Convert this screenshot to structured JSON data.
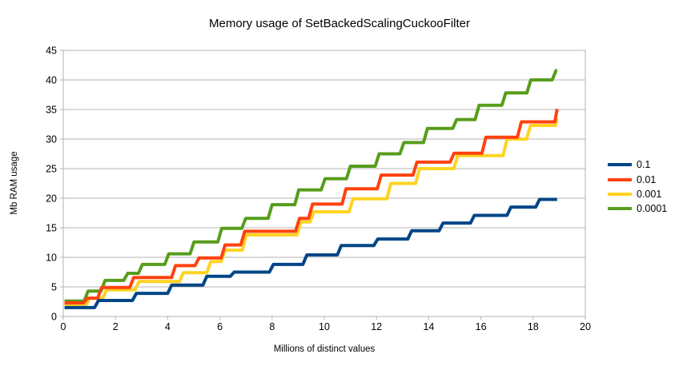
{
  "chart": {
    "title": "Memory usage of SetBackedScalingCuckooFilter",
    "xlabel": "Millions of distinct values",
    "ylabel": "Mb RAM usage"
  },
  "chart_data": {
    "type": "line",
    "step_style": true,
    "title": "Memory usage of SetBackedScalingCuckooFilter",
    "xlabel": "Millions of distinct values",
    "ylabel": "Mb RAM usage",
    "xlim": [
      0,
      20
    ],
    "ylim": [
      0,
      45
    ],
    "xticks": [
      0,
      2,
      4,
      6,
      8,
      10,
      12,
      14,
      16,
      18,
      20
    ],
    "yticks": [
      0,
      5,
      10,
      15,
      20,
      25,
      30,
      35,
      40,
      45
    ],
    "grid": "horizontal",
    "legend_position": "right",
    "colors": {
      "background": "#ffffff",
      "grid": "#b3b3b3",
      "axis": "#b3b3b3",
      "text": "#000000"
    },
    "series": [
      {
        "name": "0.1",
        "color": "#004586",
        "x_start": 0.05,
        "x_end": 18.92,
        "start": 1.5,
        "steps": [
          [
            1.2,
            2.7
          ],
          [
            2.65,
            3.9
          ],
          [
            4.0,
            5.3
          ],
          [
            5.35,
            6.8
          ],
          [
            6.4,
            7.5
          ],
          [
            7.9,
            8.8
          ],
          [
            9.18,
            10.4
          ],
          [
            10.5,
            12.0
          ],
          [
            11.9,
            13.1
          ],
          [
            13.2,
            14.5
          ],
          [
            14.4,
            15.8
          ],
          [
            15.6,
            17.1
          ],
          [
            17.0,
            18.5
          ],
          [
            18.1,
            19.8
          ]
        ]
      },
      {
        "name": "0.01",
        "color": "#FF420E",
        "x_start": 0.05,
        "x_end": 18.92,
        "start": 2.3,
        "steps": [
          [
            0.78,
            3.1
          ],
          [
            1.32,
            4.9
          ],
          [
            2.55,
            6.6
          ],
          [
            4.15,
            8.6
          ],
          [
            5.05,
            9.9
          ],
          [
            6.05,
            12.1
          ],
          [
            6.8,
            14.4
          ],
          [
            8.9,
            16.6
          ],
          [
            9.4,
            19.0
          ],
          [
            10.68,
            21.6
          ],
          [
            12.03,
            23.9
          ],
          [
            13.4,
            26.1
          ],
          [
            14.82,
            27.6
          ],
          [
            16.04,
            30.3
          ],
          [
            17.4,
            32.9
          ],
          [
            18.83,
            35.1
          ]
        ]
      },
      {
        "name": "0.001",
        "color": "#FFD320",
        "x_start": 0.05,
        "x_end": 18.92,
        "start": 2.0,
        "steps": [
          [
            0.87,
            3.1
          ],
          [
            1.51,
            4.5
          ],
          [
            2.75,
            5.9
          ],
          [
            4.45,
            7.4
          ],
          [
            5.5,
            9.3
          ],
          [
            6.05,
            11.2
          ],
          [
            6.86,
            13.8
          ],
          [
            8.95,
            16.0
          ],
          [
            9.45,
            17.7
          ],
          [
            10.95,
            19.9
          ],
          [
            12.4,
            22.5
          ],
          [
            13.5,
            25.0
          ],
          [
            14.96,
            27.2
          ],
          [
            16.85,
            30.0
          ],
          [
            17.75,
            32.3
          ],
          [
            18.85,
            33.4
          ]
        ]
      },
      {
        "name": "0.0001",
        "color": "#579D1C",
        "x_start": 0.05,
        "x_end": 18.92,
        "start": 2.6,
        "steps": [
          [
            0.8,
            4.3
          ],
          [
            1.45,
            6.1
          ],
          [
            2.32,
            7.3
          ],
          [
            2.88,
            8.8
          ],
          [
            3.89,
            10.6
          ],
          [
            4.86,
            12.6
          ],
          [
            5.92,
            14.9
          ],
          [
            6.84,
            16.6
          ],
          [
            7.85,
            18.9
          ],
          [
            8.87,
            21.4
          ],
          [
            9.88,
            23.3
          ],
          [
            10.85,
            25.4
          ],
          [
            11.95,
            27.5
          ],
          [
            12.9,
            29.4
          ],
          [
            13.8,
            31.8
          ],
          [
            14.92,
            33.3
          ],
          [
            15.78,
            35.7
          ],
          [
            16.8,
            37.8
          ],
          [
            17.76,
            40.0
          ],
          [
            18.73,
            41.6
          ]
        ]
      }
    ]
  }
}
